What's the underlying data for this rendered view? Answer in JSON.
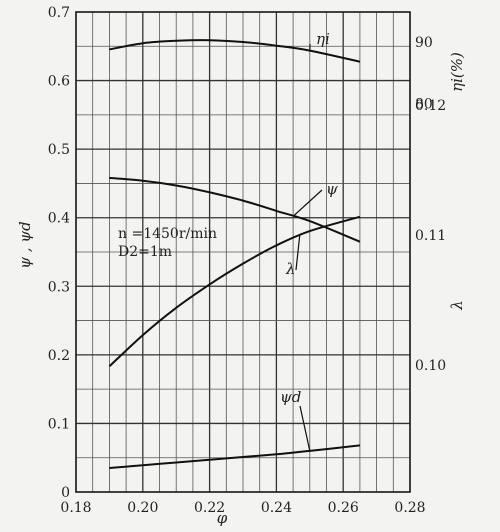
{
  "chart_data": {
    "type": "line",
    "xlabel": "φ",
    "xlim": [
      0.18,
      0.28
    ],
    "x_ticks": [
      "0.18",
      "0.20",
      "0.22",
      "0.24",
      "0.26",
      "0.28"
    ],
    "left_axis": {
      "label": "ψ , ψd",
      "ylim": [
        0,
        0.7
      ],
      "ticks": [
        "0",
        "0.1",
        "0.2",
        "0.3",
        "0.4",
        "0.5",
        "0.6",
        "0.7"
      ]
    },
    "right_axes": [
      {
        "label": "ηi(%)",
        "ticks": [
          "90",
          "80"
        ],
        "tick_values": [
          90,
          80
        ]
      },
      {
        "label": "λ",
        "ticks": [
          "0.12",
          "0.11",
          "0.10"
        ],
        "tick_values": [
          0.12,
          0.11,
          0.1
        ]
      }
    ],
    "annotation": {
      "line1": "n =1450r/min",
      "line2": "D2=1m"
    },
    "grid": true,
    "series": [
      {
        "name": "ηi",
        "axis": "eta",
        "x": [
          0.19,
          0.2,
          0.21,
          0.22,
          0.23,
          0.24,
          0.25,
          0.265
        ],
        "y": [
          88.8,
          89.8,
          90.2,
          90.3,
          90.0,
          89.4,
          88.6,
          86.8
        ]
      },
      {
        "name": "ψ",
        "axis": "psi",
        "x": [
          0.19,
          0.2,
          0.21,
          0.22,
          0.23,
          0.24,
          0.25,
          0.265
        ],
        "y": [
          0.458,
          0.454,
          0.447,
          0.437,
          0.425,
          0.41,
          0.395,
          0.365
        ]
      },
      {
        "name": "λ",
        "axis": "lambda",
        "x": [
          0.19,
          0.2,
          0.21,
          0.22,
          0.23,
          0.24,
          0.25,
          0.265
        ],
        "y": [
          0.0999,
          0.1023,
          0.1044,
          0.1062,
          0.1078,
          0.1092,
          0.1103,
          0.1114
        ]
      },
      {
        "name": "ψd",
        "axis": "psi",
        "x": [
          0.19,
          0.2,
          0.21,
          0.22,
          0.23,
          0.24,
          0.25,
          0.265
        ],
        "y": [
          0.035,
          0.039,
          0.043,
          0.047,
          0.051,
          0.055,
          0.06,
          0.068
        ]
      }
    ]
  }
}
